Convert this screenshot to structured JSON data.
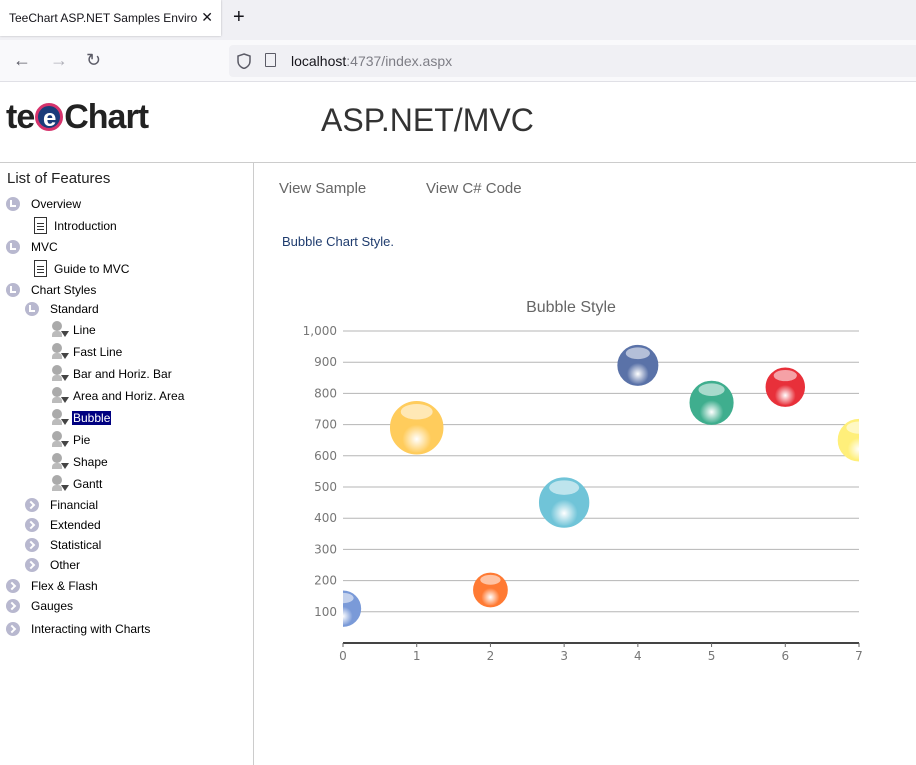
{
  "browser": {
    "tab_title": "TeeChart ASP.NET Samples Environme",
    "url_host": "localhost",
    "url_path": ":4737/index.aspx"
  },
  "header": {
    "logo_text_pre": "te",
    "logo_text_e": "e",
    "logo_text_post": "Chart",
    "title": "ASP.NET/MVC"
  },
  "sidebar": {
    "title": "List of Features",
    "items": [
      {
        "label": "Overview"
      },
      {
        "label": "Introduction"
      },
      {
        "label": "MVC"
      },
      {
        "label": "Guide to MVC"
      },
      {
        "label": "Chart Styles"
      },
      {
        "label": "Standard"
      },
      {
        "label": "Line"
      },
      {
        "label": "Fast Line"
      },
      {
        "label": "Bar and Horiz. Bar"
      },
      {
        "label": "Area and Horiz. Area"
      },
      {
        "label": "Bubble"
      },
      {
        "label": "Pie"
      },
      {
        "label": "Shape"
      },
      {
        "label": "Gantt"
      },
      {
        "label": "Financial"
      },
      {
        "label": "Extended"
      },
      {
        "label": "Statistical"
      },
      {
        "label": "Other"
      },
      {
        "label": "Flex & Flash"
      },
      {
        "label": "Gauges"
      },
      {
        "label": "Interacting with Charts"
      }
    ]
  },
  "main": {
    "tabs": [
      {
        "label": "View Sample"
      },
      {
        "label": "View C# Code"
      }
    ],
    "description": "Bubble Chart Style."
  },
  "chart_data": {
    "type": "scatter",
    "title": "Bubble Style",
    "xlabel": "",
    "ylabel": "",
    "xlim": [
      0,
      7
    ],
    "ylim": [
      0,
      1000
    ],
    "x_ticks": [
      0,
      1,
      2,
      3,
      4,
      5,
      6,
      7
    ],
    "y_ticks": [
      100,
      200,
      300,
      400,
      500,
      600,
      700,
      800,
      900,
      1000
    ],
    "y_tick_labels": [
      "100",
      "200",
      "300",
      "400",
      "500",
      "600",
      "700",
      "800",
      "900",
      "1,000"
    ],
    "grid": "horizontal",
    "points": [
      {
        "x": 0,
        "y": 110,
        "radius": 110,
        "color": "#7a9ad8"
      },
      {
        "x": 1,
        "y": 690,
        "radius": 165,
        "color": "#ffcc5c"
      },
      {
        "x": 2,
        "y": 170,
        "radius": 105,
        "color": "#ff7a33"
      },
      {
        "x": 3,
        "y": 450,
        "radius": 155,
        "color": "#70c4d8"
      },
      {
        "x": 4,
        "y": 890,
        "radius": 125,
        "color": "#5a72a8"
      },
      {
        "x": 5,
        "y": 770,
        "radius": 135,
        "color": "#3fae8e"
      },
      {
        "x": 6,
        "y": 820,
        "radius": 120,
        "color": "#e8303a"
      },
      {
        "x": 7,
        "y": 650,
        "radius": 130,
        "color": "#ffef7a"
      }
    ]
  }
}
